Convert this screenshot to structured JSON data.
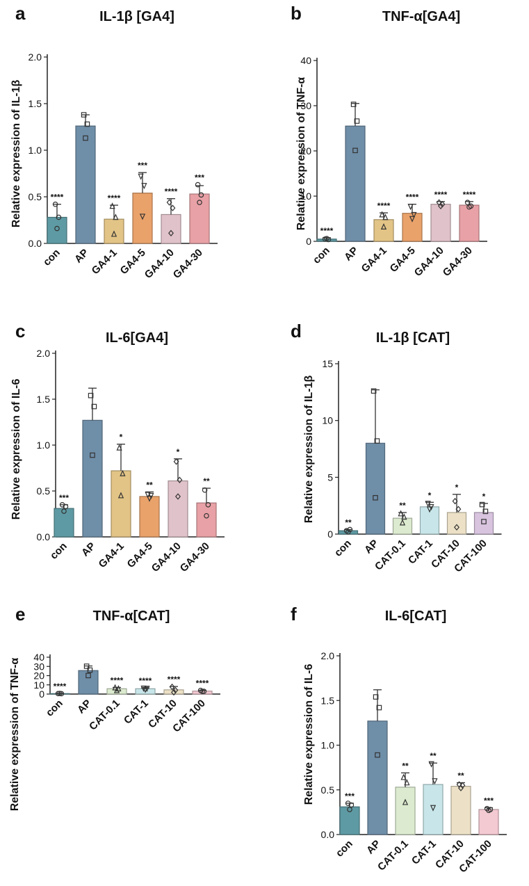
{
  "chart_data": [
    {
      "type": "bar",
      "letter": "a",
      "title": "IL-1β [GA4]",
      "ylabel": "Relative expression of IL-1β",
      "ylim": [
        0,
        2.0
      ],
      "yticks": [
        "0.0",
        "0.5",
        "1.0",
        "1.5",
        "2.0"
      ],
      "categories": [
        "con",
        "AP",
        "GA4-1",
        "GA4-5",
        "GA4-10",
        "GA4-30"
      ],
      "values": [
        0.28,
        1.26,
        0.26,
        0.54,
        0.31,
        0.53
      ],
      "errors": [
        0.14,
        0.12,
        0.15,
        0.22,
        0.17,
        0.09
      ],
      "points": [
        [
          0.42,
          0.16,
          0.28
        ],
        [
          1.38,
          1.13,
          1.28
        ],
        [
          0.4,
          0.1,
          0.28
        ],
        [
          0.72,
          0.29,
          0.62
        ],
        [
          0.44,
          0.11,
          0.38
        ],
        [
          0.63,
          0.44,
          0.52
        ]
      ],
      "markers": [
        "circle",
        "square",
        "triangle",
        "triangle-down",
        "diamond",
        "circle"
      ],
      "significance": [
        "****",
        "",
        "****",
        "***",
        "****",
        "***"
      ],
      "colors": [
        "#5e9aa3",
        "#6f8ea8",
        "#e2c486",
        "#e9a26a",
        "#e0c2ca",
        "#e8a1a6"
      ]
    },
    {
      "type": "bar",
      "letter": "b",
      "title": "TNF-α[GA4]",
      "ylabel": "Relative expression of TNF-α",
      "ylim": [
        0,
        40
      ],
      "yticks": [
        "0",
        "10",
        "20",
        "30",
        "40"
      ],
      "categories": [
        "con",
        "AP",
        "GA4-1",
        "GA4-5",
        "GA4-10",
        "GA4-30"
      ],
      "values": [
        0.5,
        25.5,
        4.8,
        6.2,
        8.2,
        8.0
      ],
      "errors": [
        0.3,
        5.0,
        1.5,
        2.0,
        0.6,
        0.8
      ],
      "points": [
        [
          0.5,
          0.6,
          0.4
        ],
        [
          30.3,
          20.1,
          26.6
        ],
        [
          5.9,
          3.2,
          5.3
        ],
        [
          7.7,
          5.0,
          5.9
        ],
        [
          8.6,
          7.8,
          8.2
        ],
        [
          8.6,
          7.6,
          7.8
        ]
      ],
      "markers": [
        "circle",
        "square",
        "triangle",
        "triangle-down",
        "diamond",
        "circle"
      ],
      "significance": [
        "****",
        "",
        "****",
        "****",
        "****",
        "****"
      ],
      "colors": [
        "#5e9aa3",
        "#6f8ea8",
        "#e2c486",
        "#e9a26a",
        "#e0c2ca",
        "#e8a1a6"
      ]
    },
    {
      "type": "bar",
      "letter": "c",
      "title": "IL-6[GA4]",
      "ylabel": "Relative expression of IL-6",
      "ylim": [
        0,
        2.0
      ],
      "yticks": [
        "0.0",
        "0.5",
        "1.0",
        "1.5",
        "2.0"
      ],
      "categories": [
        "con",
        "AP",
        "GA4-1",
        "GA4-5",
        "GA4-10",
        "GA4-30"
      ],
      "values": [
        0.31,
        1.27,
        0.72,
        0.44,
        0.61,
        0.37
      ],
      "errors": [
        0.04,
        0.35,
        0.29,
        0.05,
        0.24,
        0.16
      ],
      "points": [
        [
          0.35,
          0.28,
          0.33
        ],
        [
          1.54,
          0.89,
          1.42
        ],
        [
          0.97,
          0.45,
          0.69
        ],
        [
          0.46,
          0.42,
          0.45
        ],
        [
          0.82,
          0.44,
          0.62
        ],
        [
          0.51,
          0.23,
          0.35
        ]
      ],
      "markers": [
        "circle",
        "square",
        "triangle",
        "triangle-down",
        "diamond",
        "circle"
      ],
      "significance": [
        "***",
        "",
        "*",
        "**",
        "*",
        "**"
      ],
      "colors": [
        "#5e9aa3",
        "#6f8ea8",
        "#e2c486",
        "#e9a26a",
        "#e0c2ca",
        "#e8a1a6"
      ]
    },
    {
      "type": "bar",
      "letter": "d",
      "title": "IL-1β [CAT]",
      "ylabel": "Relative expression of IL-1β",
      "ylim": [
        0,
        15
      ],
      "yticks": [
        "0",
        "5",
        "10",
        "15"
      ],
      "categories": [
        "con",
        "AP",
        "CAT-0.1",
        "CAT-1",
        "CAT-10",
        "CAT-100"
      ],
      "values": [
        0.3,
        8.0,
        1.4,
        2.4,
        1.9,
        1.9
      ],
      "errors": [
        0.1,
        4.7,
        0.5,
        0.4,
        1.6,
        0.8
      ],
      "points": [
        [
          0.3,
          0.2,
          0.4
        ],
        [
          12.6,
          3.2,
          8.2
        ],
        [
          1.8,
          1.0,
          1.5
        ],
        [
          2.7,
          2.2,
          2.4
        ],
        [
          2.9,
          0.6,
          2.2
        ],
        [
          2.6,
          1.1,
          2.0
        ]
      ],
      "markers": [
        "circle",
        "square",
        "triangle",
        "triangle-down",
        "diamond",
        "square"
      ],
      "significance": [
        "**",
        "",
        "**",
        "*",
        "*",
        "*"
      ],
      "colors": [
        "#5e9aa3",
        "#6f8ea8",
        "#dcebcf",
        "#c8e6ea",
        "#ece1c6",
        "#d8c4df"
      ]
    },
    {
      "type": "bar",
      "letter": "e",
      "title": "TNF-α[CAT]",
      "ylabel": "Relative expression of TNF-α",
      "ylim": [
        0,
        40
      ],
      "yticks": [
        "0",
        "10",
        "20",
        "30",
        "40"
      ],
      "categories": [
        "con",
        "AP",
        "CAT-0.1",
        "CAT-1",
        "CAT-10",
        "CAT-100"
      ],
      "values": [
        0.5,
        25.5,
        5.8,
        5.8,
        4.6,
        3.2
      ],
      "errors": [
        0.3,
        5.0,
        1.4,
        0.9,
        3.6,
        0.9
      ],
      "points": [
        [
          0.5,
          0.6,
          0.4
        ],
        [
          30.2,
          20.1,
          26.0
        ],
        [
          6.9,
          3.9,
          5.8
        ],
        [
          6.3,
          5.0,
          6.1
        ],
        [
          7.8,
          1.9,
          4.2
        ],
        [
          3.9,
          2.9,
          3.0
        ]
      ],
      "markers": [
        "circle",
        "square",
        "triangle",
        "triangle-down",
        "diamond",
        "circle"
      ],
      "significance": [
        "****",
        "",
        "****",
        "****",
        "****",
        "****"
      ],
      "colors": [
        "#5e9aa3",
        "#6f8ea8",
        "#dcebcf",
        "#c8e6ea",
        "#ece1c6",
        "#f3c9d2"
      ]
    },
    {
      "type": "bar",
      "letter": "f",
      "title": "IL-6[CAT]",
      "ylabel": "Relative expression of IL-6",
      "ylim": [
        0,
        2.0
      ],
      "yticks": [
        "0.0",
        "0.5",
        "1.0",
        "1.5",
        "2.0"
      ],
      "categories": [
        "con",
        "AP",
        "CAT-0.1",
        "CAT-1",
        "CAT-10",
        "CAT-100"
      ],
      "values": [
        0.31,
        1.27,
        0.53,
        0.56,
        0.54,
        0.28
      ],
      "errors": [
        0.04,
        0.35,
        0.16,
        0.24,
        0.04,
        0.02
      ],
      "points": [
        [
          0.35,
          0.28,
          0.33
        ],
        [
          1.54,
          0.89,
          1.42
        ],
        [
          0.64,
          0.36,
          0.58
        ],
        [
          0.79,
          0.3,
          0.6
        ],
        [
          0.56,
          0.52,
          0.55
        ],
        [
          0.29,
          0.27,
          0.28
        ]
      ],
      "markers": [
        "circle",
        "square",
        "triangle",
        "triangle-down",
        "diamond",
        "circle"
      ],
      "significance": [
        "***",
        "",
        "**",
        "**",
        "**",
        "***"
      ],
      "colors": [
        "#5e9aa3",
        "#6f8ea8",
        "#dcebcf",
        "#c8e6ea",
        "#ece1c6",
        "#f3c9d2"
      ]
    }
  ]
}
